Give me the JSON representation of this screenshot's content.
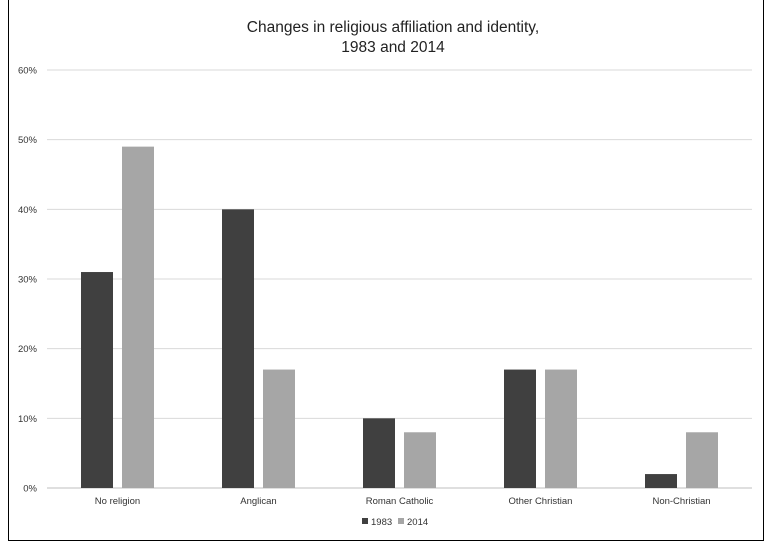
{
  "chart_data": {
    "type": "bar",
    "title_lines": [
      "Changes in religious affiliation and identity,",
      "1983 and 2014"
    ],
    "xlabel": "",
    "ylabel": "",
    "ylim": [
      0,
      60
    ],
    "yticks": [
      "0%",
      "10%",
      "20%",
      "30%",
      "40%",
      "50%",
      "60%"
    ],
    "y_tick_values": [
      0,
      10,
      20,
      30,
      40,
      50,
      60
    ],
    "categories": [
      "No religion",
      "Anglican",
      "Roman Catholic",
      "Other Christian",
      "Non-Christian"
    ],
    "series": [
      {
        "name": "1983",
        "values": [
          31,
          40,
          10,
          17,
          2
        ],
        "color": "#404040"
      },
      {
        "name": "2014",
        "values": [
          49,
          17,
          8,
          17,
          8
        ],
        "color": "#a6a6a6"
      }
    ],
    "grid": true,
    "legend_position": "bottom"
  }
}
